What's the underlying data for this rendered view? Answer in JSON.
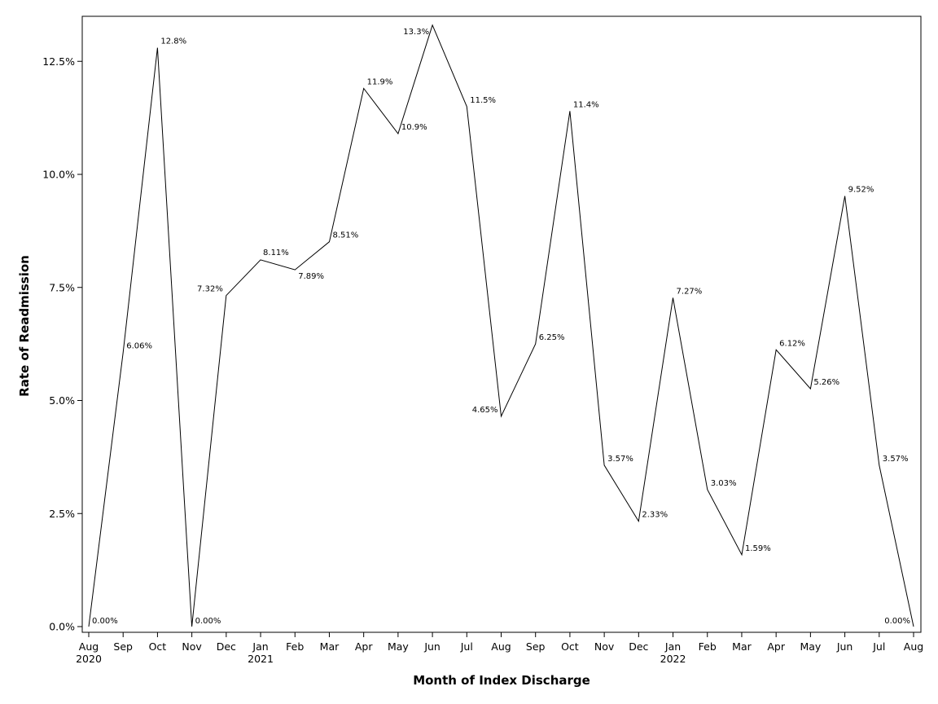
{
  "chart_data": {
    "type": "line",
    "xlabel": "Month of Index Discharge",
    "ylabel": "Rate of Readmission",
    "ylim": [
      0,
      13.45
    ],
    "y_ticks": [
      {
        "value": 0,
        "label": "0.0%"
      },
      {
        "value": 2.5,
        "label": "2.5%"
      },
      {
        "value": 5,
        "label": "5.0%"
      },
      {
        "value": 7.5,
        "label": "7.5%"
      },
      {
        "value": 10,
        "label": "10.0%"
      },
      {
        "value": 12.5,
        "label": "12.5%"
      }
    ],
    "x_labels": [
      "Aug",
      "Sep",
      "Oct",
      "Nov",
      "Dec",
      "Jan",
      "Feb",
      "Mar",
      "Apr",
      "May",
      "Jun",
      "Jul",
      "Aug",
      "Sep",
      "Oct",
      "Nov",
      "Dec",
      "Jan",
      "Feb",
      "Mar",
      "Apr",
      "May",
      "Jun",
      "Jul",
      "Aug"
    ],
    "year_labels": [
      {
        "index": 0,
        "label": "2020"
      },
      {
        "index": 5,
        "label": "2021"
      },
      {
        "index": 17,
        "label": "2022"
      }
    ],
    "grid": false,
    "legend": "none",
    "line_color": "#000000",
    "points": [
      {
        "x": "2020-08",
        "y": 0.0,
        "label": "0.00%",
        "pos": "right"
      },
      {
        "x": "2020-09",
        "y": 6.06,
        "label": "6.06%",
        "pos": "right"
      },
      {
        "x": "2020-10",
        "y": 12.8,
        "label": "12.8%",
        "pos": "right"
      },
      {
        "x": "2020-11",
        "y": 0.0,
        "label": "0.00%",
        "pos": "right"
      },
      {
        "x": "2020-12",
        "y": 7.32,
        "label": "7.32%",
        "pos": "left"
      },
      {
        "x": "2021-01",
        "y": 8.11,
        "label": "8.11%",
        "pos": "above"
      },
      {
        "x": "2021-02",
        "y": 7.89,
        "label": "7.89%",
        "pos": "below"
      },
      {
        "x": "2021-03",
        "y": 8.51,
        "label": "8.51%",
        "pos": "right"
      },
      {
        "x": "2021-04",
        "y": 11.9,
        "label": "11.9%",
        "pos": "right"
      },
      {
        "x": "2021-05",
        "y": 10.9,
        "label": "10.9%",
        "pos": "right"
      },
      {
        "x": "2021-06",
        "y": 13.3,
        "label": "13.3%",
        "pos": "left"
      },
      {
        "x": "2021-07",
        "y": 11.5,
        "label": "11.5%",
        "pos": "right"
      },
      {
        "x": "2021-08",
        "y": 4.65,
        "label": "4.65%",
        "pos": "left"
      },
      {
        "x": "2021-09",
        "y": 6.25,
        "label": "6.25%",
        "pos": "right"
      },
      {
        "x": "2021-10",
        "y": 11.4,
        "label": "11.4%",
        "pos": "right"
      },
      {
        "x": "2021-11",
        "y": 3.57,
        "label": "3.57%",
        "pos": "right"
      },
      {
        "x": "2021-12",
        "y": 2.33,
        "label": "2.33%",
        "pos": "right"
      },
      {
        "x": "2022-01",
        "y": 7.27,
        "label": "7.27%",
        "pos": "right"
      },
      {
        "x": "2022-02",
        "y": 3.03,
        "label": "3.03%",
        "pos": "right"
      },
      {
        "x": "2022-03",
        "y": 1.59,
        "label": "1.59%",
        "pos": "right"
      },
      {
        "x": "2022-04",
        "y": 6.12,
        "label": "6.12%",
        "pos": "right"
      },
      {
        "x": "2022-05",
        "y": 5.26,
        "label": "5.26%",
        "pos": "right"
      },
      {
        "x": "2022-06",
        "y": 9.52,
        "label": "9.52%",
        "pos": "right"
      },
      {
        "x": "2022-07",
        "y": 3.57,
        "label": "3.57%",
        "pos": "right"
      },
      {
        "x": "2022-08",
        "y": 0.0,
        "label": "0.00%",
        "pos": "left"
      }
    ]
  }
}
